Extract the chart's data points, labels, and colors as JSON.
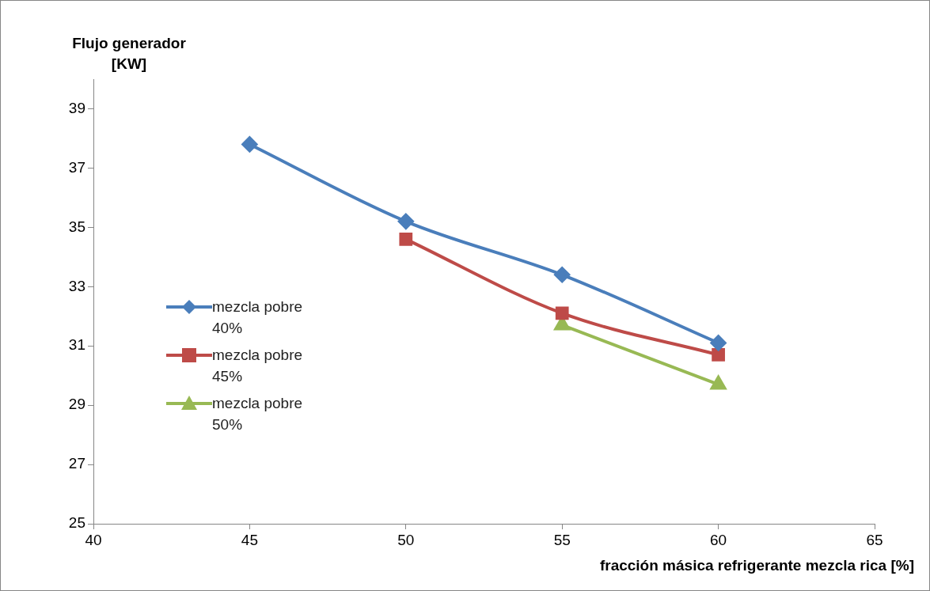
{
  "chart_data": {
    "type": "line",
    "xlabel": "fracción másica refrigerante mezcla rica [%]",
    "ylabel": "Flujo generador [KW]",
    "x": [
      45,
      50,
      55,
      60
    ],
    "series": [
      {
        "name": "mezcla pobre 40%",
        "color": "#4a7ebb",
        "marker": "diamond",
        "values": [
          37.8,
          35.2,
          33.4,
          31.1
        ]
      },
      {
        "name": "mezcla pobre 45%",
        "color": "#be4b48",
        "marker": "square",
        "values": [
          null,
          34.6,
          32.1,
          30.7
        ]
      },
      {
        "name": "mezcla pobre 50%",
        "color": "#98b954",
        "marker": "triangle",
        "values": [
          null,
          null,
          31.7,
          29.7
        ]
      }
    ],
    "xlim": [
      40,
      65
    ],
    "xticks": [
      40,
      45,
      50,
      55,
      60,
      65
    ],
    "ylim": [
      25,
      40
    ],
    "yticks": [
      25,
      27,
      29,
      31,
      33,
      35,
      37,
      39
    ],
    "grid": false,
    "legend": "left",
    "line_style": "solid"
  }
}
